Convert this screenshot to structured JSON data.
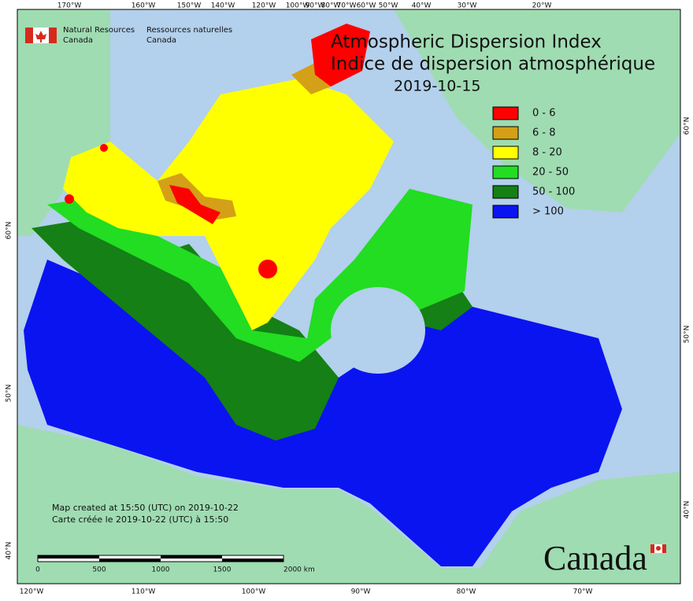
{
  "agency": {
    "en_line1": "Natural Resources",
    "en_line2": "Canada",
    "fr_line1": "Ressources naturelles",
    "fr_line2": "Canada"
  },
  "title": {
    "line1": "Atmospheric Dispersion Index",
    "line2": "Indice de dispersion atmosphérique",
    "date": "2019-10-15"
  },
  "legend": [
    {
      "label": "0 - 6",
      "color": "#ff0000"
    },
    {
      "label": "6 - 8",
      "color": "#d4a017"
    },
    {
      "label": "8 - 20",
      "color": "#ffff00"
    },
    {
      "label": "20 - 50",
      "color": "#22dd22"
    },
    {
      "label": "50 - 100",
      "color": "#158015"
    },
    {
      "label": "> 100",
      "color": "#0a14f0"
    }
  ],
  "graticule": {
    "top": [
      "170°W",
      "160°W",
      "150°W",
      "140°W",
      "120°W",
      "100°W",
      "90°W",
      "80°W",
      "70°W",
      "60°W",
      "50°W",
      "40°W",
      "30°W",
      "20°W"
    ],
    "bottom": [
      "120°W",
      "110°W",
      "100°W",
      "90°W",
      "80°W",
      "70°W"
    ],
    "left": [
      "60°N",
      "50°N",
      "40°N"
    ],
    "right": [
      "60°N",
      "50°N",
      "40°N"
    ]
  },
  "credits": {
    "line1": "Map created at 15:50 (UTC) on 2019-10-22",
    "line2": "Carte créée le 2019-10-22 (UTC) à 15:50"
  },
  "scale_bar": {
    "labels": [
      "0",
      "500",
      "1000",
      "1500",
      "2000 km"
    ]
  },
  "wordmark": "Canada"
}
